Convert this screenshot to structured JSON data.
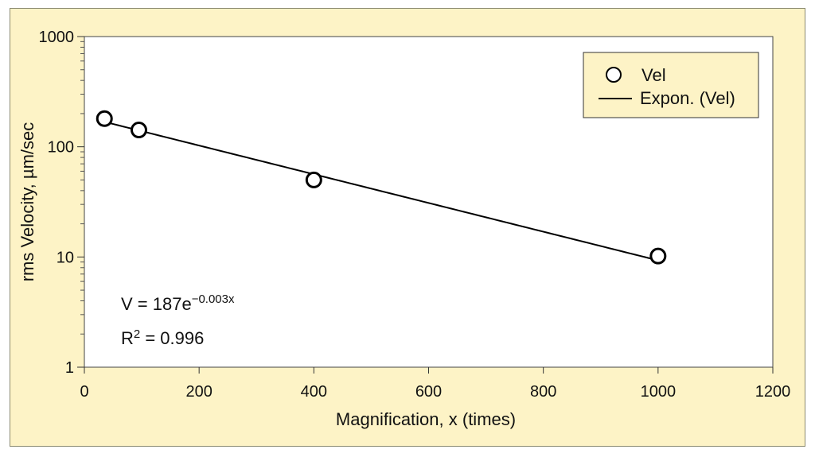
{
  "chart_data": {
    "type": "scatter",
    "xlabel": "Magnification, x (times)",
    "ylabel": "rms Velocity, µm/sec",
    "xlim": [
      0,
      1200
    ],
    "ylim": [
      1,
      1000
    ],
    "yscale": "log",
    "x_ticks": [
      "0",
      "200",
      "400",
      "600",
      "800",
      "1000",
      "1200"
    ],
    "y_ticks": [
      "1",
      "10",
      "100",
      "1000"
    ],
    "series": [
      {
        "name": "Vel",
        "kind": "points",
        "x": [
          35,
          95,
          400,
          1000
        ],
        "y": [
          180,
          142,
          50,
          10.2
        ]
      },
      {
        "name": "Expon. (Vel)",
        "kind": "fit-line",
        "equation_coefficient": 187,
        "equation_rate": -0.003
      }
    ],
    "legend_position": "top-right",
    "annotations": {
      "equation_base": "V = 187e",
      "equation_exponent": "−0.003x",
      "r2_prefix": "R",
      "r2_sup": "2",
      "r2_value": " = 0.996"
    },
    "grid": false,
    "colors": {
      "background": "#fdf3c6",
      "plot_area": "#ffffff",
      "line": "#000000"
    }
  }
}
